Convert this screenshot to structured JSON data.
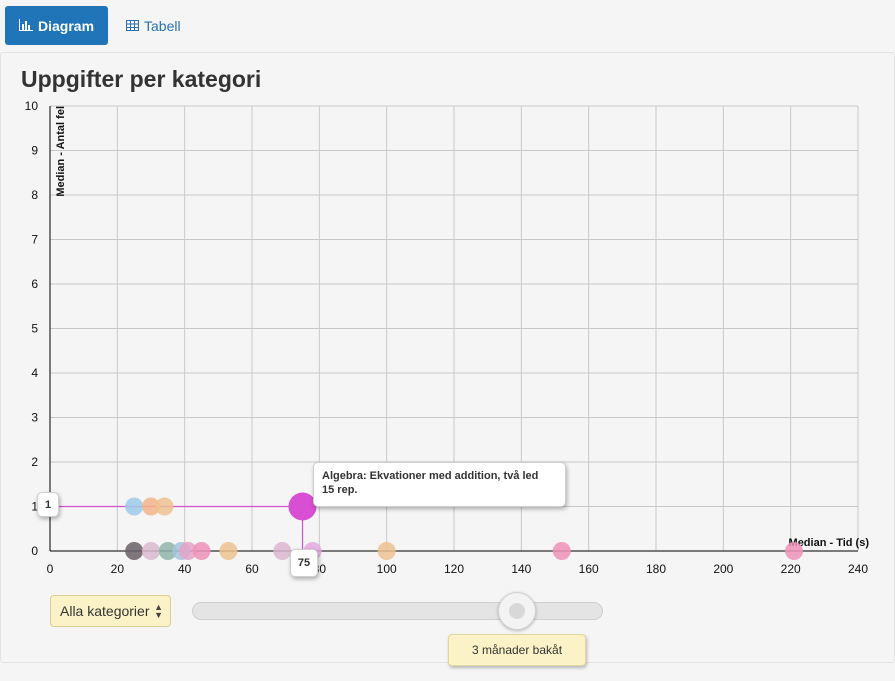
{
  "tabs": {
    "diagram_label": "Diagram",
    "table_label": "Tabell",
    "diagram_icon": "bar-chart-icon",
    "table_icon": "table-icon"
  },
  "title": "Uppgifter per kategori",
  "chart_data": {
    "type": "scatter",
    "xlabel": "Median - Tid (s)",
    "ylabel": "Median - Antal fel",
    "xlim": [
      0,
      240
    ],
    "ylim": [
      0,
      10
    ],
    "x_ticks": [
      0,
      20,
      40,
      60,
      80,
      100,
      120,
      140,
      160,
      180,
      200,
      220,
      240
    ],
    "y_ticks": [
      0,
      1,
      2,
      3,
      4,
      5,
      6,
      7,
      8,
      9,
      10
    ],
    "grid": true,
    "points": [
      {
        "x": 25,
        "y": 1,
        "color": "#9ecae8"
      },
      {
        "x": 30,
        "y": 1,
        "color": "#f2b48a"
      },
      {
        "x": 34,
        "y": 1,
        "color": "#edc18f"
      },
      {
        "x": 25,
        "y": 0,
        "color": "#6a5f66"
      },
      {
        "x": 30,
        "y": 0,
        "color": "#d9b8cf"
      },
      {
        "x": 35,
        "y": 0,
        "color": "#8fb5a8"
      },
      {
        "x": 39,
        "y": 0,
        "color": "#a6c3dc"
      },
      {
        "x": 41,
        "y": 0,
        "color": "#e4a3c8"
      },
      {
        "x": 45,
        "y": 0,
        "color": "#ee92b8"
      },
      {
        "x": 53,
        "y": 0,
        "color": "#edc28f"
      },
      {
        "x": 69,
        "y": 0,
        "color": "#dbb6d0"
      },
      {
        "x": 78,
        "y": 0,
        "color": "#e5a9e3"
      },
      {
        "x": 100,
        "y": 0,
        "color": "#edc18f"
      },
      {
        "x": 152,
        "y": 0,
        "color": "#ee92b8"
      },
      {
        "x": 221,
        "y": 0,
        "color": "#ee92b8"
      },
      {
        "x": 75,
        "y": 1,
        "color": "#d84fd3",
        "highlighted": true
      }
    ]
  },
  "tooltip": {
    "line1": "Algebra: Ekvationer med addition, två led",
    "line2": "15 rep.",
    "x_value": "75",
    "y_value": "1"
  },
  "controls": {
    "category_select_value": "Alla kategorier",
    "time_slider_label": "3 månader bakåt",
    "time_slider_fraction": 0.79
  }
}
